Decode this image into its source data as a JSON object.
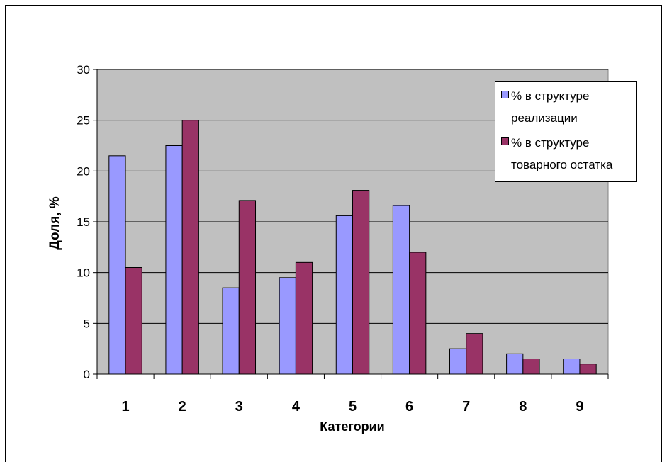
{
  "chart_data": {
    "type": "bar",
    "categories": [
      "1",
      "2",
      "3",
      "4",
      "5",
      "6",
      "7",
      "8",
      "9"
    ],
    "series": [
      {
        "name": "% в структуре реализации",
        "values": [
          21.5,
          22.5,
          8.5,
          9.5,
          15.6,
          16.6,
          2.5,
          2.0,
          1.5
        ]
      },
      {
        "name": "% в структуре товарного остатка",
        "values": [
          10.5,
          25.0,
          17.1,
          11.0,
          18.1,
          12.0,
          4.0,
          1.5,
          1.0
        ]
      }
    ],
    "xlabel": "Категории",
    "ylabel": "Доля, %",
    "ylim": [
      0,
      30
    ],
    "yticks": [
      "0",
      "5",
      "10",
      "15",
      "20",
      "25",
      "30"
    ],
    "grid": true,
    "legend_position": "top-right"
  },
  "colors": {
    "series1": "#9999ff",
    "series2": "#993366",
    "plot_background": "#c0c0c0"
  }
}
